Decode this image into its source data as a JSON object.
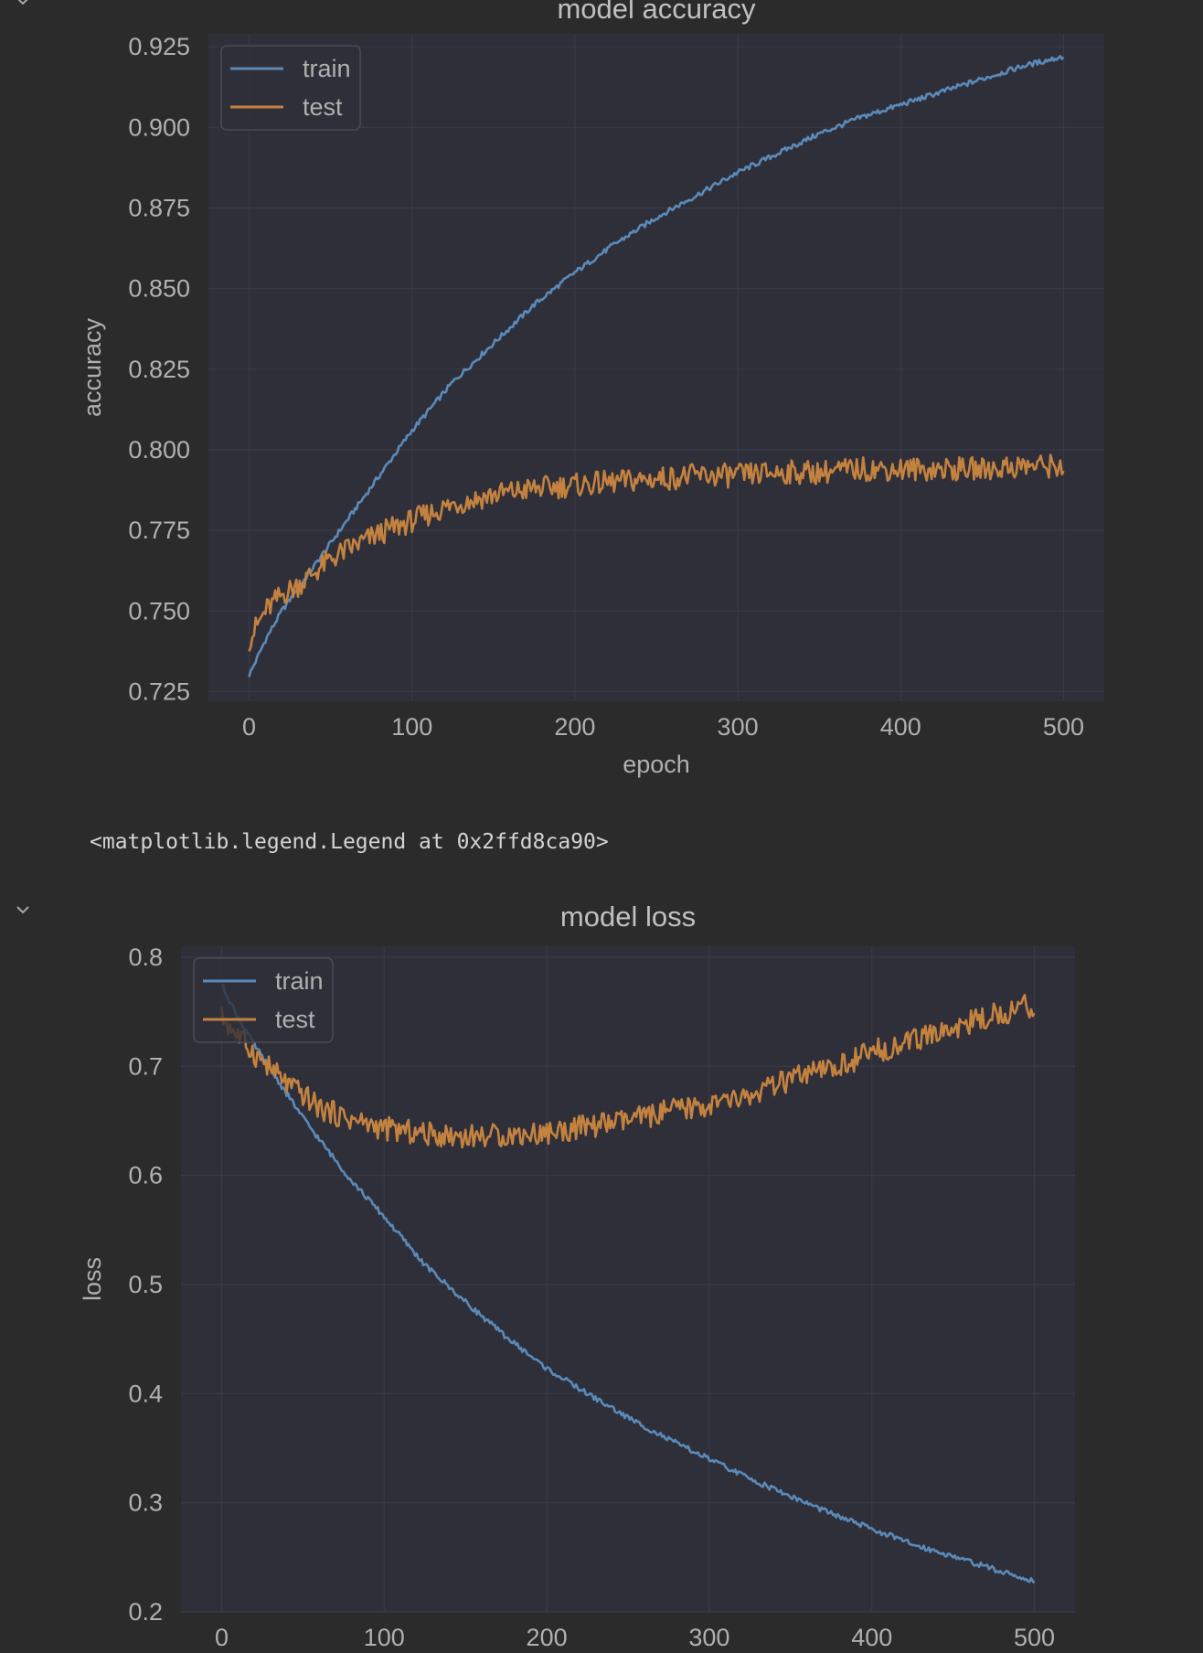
{
  "cells": [
    {
      "collapse_icon": "chevron-down-icon",
      "output_text": ""
    },
    {
      "collapse_icon": "chevron-down-icon",
      "output_text": "<matplotlib.legend.Legend at 0x2ffd8ca90>"
    }
  ],
  "theme": {
    "page_bg": "#2b2b2b",
    "axes_bg": "#2f2f3a",
    "grid": "#3a3a46",
    "text": "#b0b0b0",
    "title": "#c0c0c0",
    "train_color": "#5b8ab8",
    "test_color": "#c4823f"
  },
  "chart_data": [
    {
      "type": "line",
      "title": "model accuracy",
      "xlabel": "epoch",
      "ylabel": "accuracy",
      "xlim": [
        -25,
        525
      ],
      "ylim": [
        0.722,
        0.929
      ],
      "xticks": [
        "0",
        "100",
        "200",
        "300",
        "400",
        "500"
      ],
      "yticks": [
        "0.725",
        "0.750",
        "0.775",
        "0.800",
        "0.825",
        "0.850",
        "0.875",
        "0.900",
        "0.925"
      ],
      "grid": true,
      "legend": "upper left",
      "series": [
        {
          "name": "train",
          "x": [
            0,
            10,
            20,
            30,
            40,
            50,
            60,
            80,
            100,
            125,
            150,
            175,
            200,
            225,
            250,
            275,
            300,
            325,
            350,
            375,
            400,
            425,
            450,
            475,
            500
          ],
          "values": [
            0.73,
            0.741,
            0.75,
            0.757,
            0.764,
            0.771,
            0.778,
            0.792,
            0.806,
            0.821,
            0.833,
            0.845,
            0.855,
            0.864,
            0.872,
            0.879,
            0.886,
            0.892,
            0.898,
            0.903,
            0.907,
            0.911,
            0.915,
            0.919,
            0.922
          ]
        },
        {
          "name": "test",
          "x": [
            0,
            10,
            20,
            30,
            40,
            50,
            60,
            80,
            100,
            125,
            150,
            175,
            200,
            225,
            250,
            275,
            300,
            325,
            350,
            375,
            400,
            425,
            450,
            475,
            500
          ],
          "values": [
            0.741,
            0.75,
            0.755,
            0.758,
            0.762,
            0.766,
            0.769,
            0.774,
            0.778,
            0.783,
            0.786,
            0.788,
            0.789,
            0.79,
            0.791,
            0.792,
            0.792,
            0.793,
            0.793,
            0.794,
            0.794,
            0.794,
            0.794,
            0.795,
            0.795
          ]
        }
      ]
    },
    {
      "type": "line",
      "title": "model loss",
      "xlabel": "",
      "ylabel": "loss",
      "xlim": [
        -25,
        525
      ],
      "ylim": [
        0.2,
        0.81
      ],
      "xticks": [
        "0",
        "100",
        "200",
        "300",
        "400",
        "500"
      ],
      "yticks": [
        "0.2",
        "0.3",
        "0.4",
        "0.5",
        "0.6",
        "0.7",
        "0.8"
      ],
      "grid": true,
      "legend": "upper left",
      "series": [
        {
          "name": "train",
          "x": [
            0,
            10,
            20,
            30,
            40,
            50,
            60,
            80,
            100,
            125,
            150,
            175,
            200,
            225,
            250,
            275,
            300,
            325,
            350,
            375,
            400,
            425,
            450,
            475,
            500
          ],
          "values": [
            0.775,
            0.745,
            0.72,
            0.697,
            0.675,
            0.653,
            0.633,
            0.595,
            0.562,
            0.518,
            0.484,
            0.452,
            0.423,
            0.4,
            0.378,
            0.358,
            0.34,
            0.322,
            0.306,
            0.29,
            0.276,
            0.262,
            0.251,
            0.239,
            0.228
          ]
        },
        {
          "name": "test",
          "x": [
            0,
            10,
            20,
            30,
            40,
            50,
            60,
            80,
            100,
            125,
            150,
            175,
            200,
            225,
            250,
            275,
            300,
            325,
            350,
            375,
            400,
            425,
            450,
            475,
            500
          ],
          "values": [
            0.745,
            0.728,
            0.712,
            0.698,
            0.684,
            0.674,
            0.662,
            0.651,
            0.643,
            0.638,
            0.636,
            0.637,
            0.639,
            0.645,
            0.65,
            0.659,
            0.664,
            0.672,
            0.688,
            0.697,
            0.713,
            0.723,
            0.735,
            0.747,
            0.757
          ]
        }
      ]
    }
  ]
}
